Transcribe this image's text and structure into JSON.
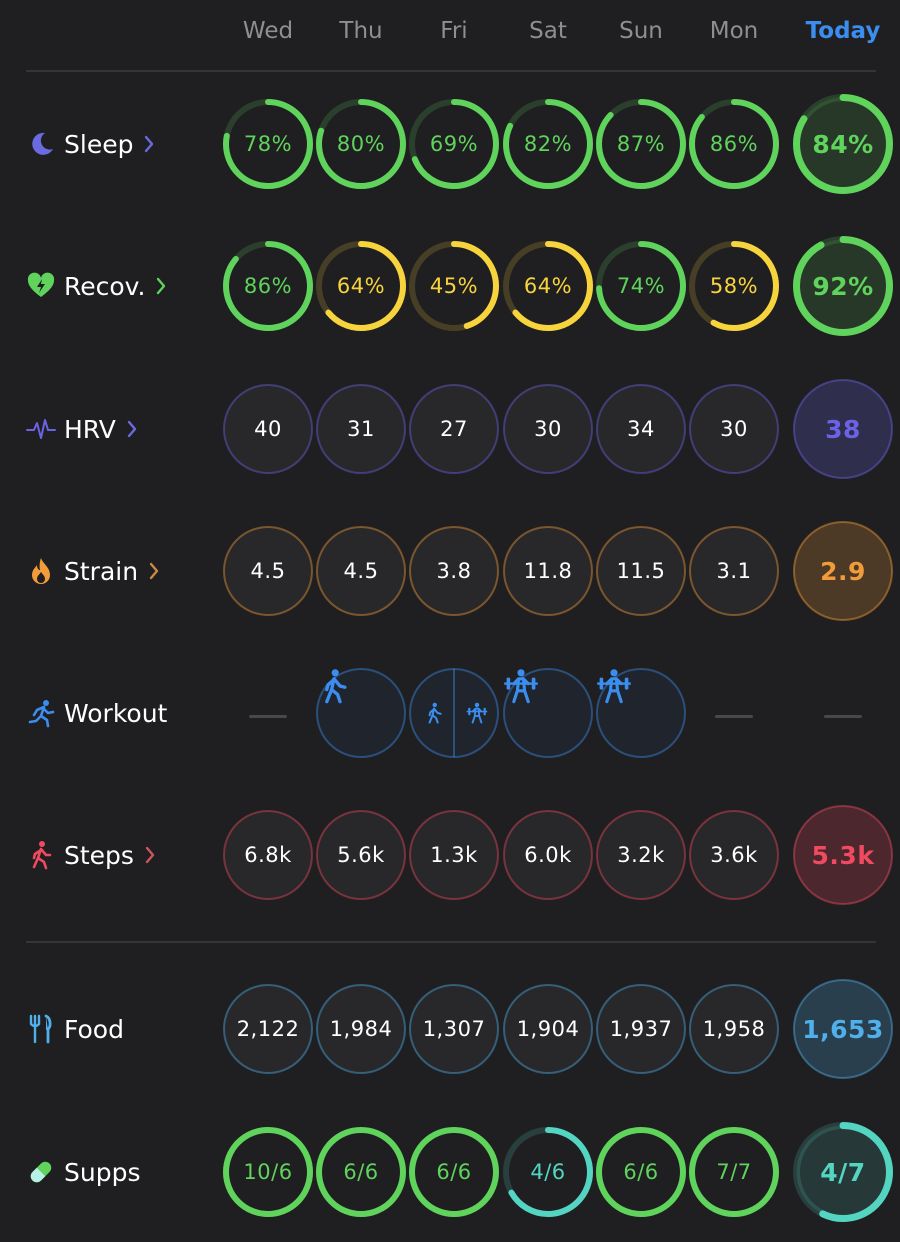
{
  "days": [
    "Wed",
    "Thu",
    "Fri",
    "Sat",
    "Sun",
    "Mon",
    "Today"
  ],
  "colors": {
    "green": "#5fd35c",
    "yellow": "#f7d43e",
    "teal": "#53d5c2",
    "purple": "#6b63e6",
    "orange": "#f29b3a",
    "red": "#ef4a60",
    "blue": "#4fb0ec",
    "workout_blue": "#3b8ef0"
  },
  "rows": [
    {
      "id": "sleep",
      "label": "Sleep",
      "icon": "moon-icon",
      "chevron": true,
      "color": "#5fd35c",
      "chevron_color": "#6a6be0",
      "cells": [
        {
          "text": "78%",
          "ring": 0.78,
          "color": "#5fd35c"
        },
        {
          "text": "80%",
          "ring": 0.8,
          "color": "#5fd35c"
        },
        {
          "text": "69%",
          "ring": 0.69,
          "color": "#5fd35c"
        },
        {
          "text": "82%",
          "ring": 0.82,
          "color": "#5fd35c"
        },
        {
          "text": "87%",
          "ring": 0.87,
          "color": "#5fd35c"
        },
        {
          "text": "86%",
          "ring": 0.86,
          "color": "#5fd35c"
        },
        {
          "text": "84%",
          "ring": 0.84,
          "color": "#5fd35c"
        }
      ]
    },
    {
      "id": "recovery",
      "label": "Recov.",
      "icon": "heart-bolt-icon",
      "chevron": true,
      "color": "#5fd35c",
      "chevron_color": "#5fd35c",
      "cells": [
        {
          "text": "86%",
          "ring": 0.86,
          "color": "#5fd35c"
        },
        {
          "text": "64%",
          "ring": 0.64,
          "color": "#f7d43e"
        },
        {
          "text": "45%",
          "ring": 0.45,
          "color": "#f7d43e"
        },
        {
          "text": "64%",
          "ring": 0.64,
          "color": "#f7d43e"
        },
        {
          "text": "74%",
          "ring": 0.74,
          "color": "#5fd35c"
        },
        {
          "text": "58%",
          "ring": 0.58,
          "color": "#f7d43e"
        },
        {
          "text": "92%",
          "ring": 0.92,
          "color": "#5fd35c"
        }
      ]
    },
    {
      "id": "hrv",
      "label": "HRV",
      "icon": "pulse-icon",
      "chevron": true,
      "color": "#6b63e6",
      "chevron_color": "#6a6be0",
      "cells": [
        {
          "text": "40"
        },
        {
          "text": "31"
        },
        {
          "text": "27"
        },
        {
          "text": "30"
        },
        {
          "text": "34"
        },
        {
          "text": "30"
        },
        {
          "text": "38"
        }
      ]
    },
    {
      "id": "strain",
      "label": "Strain",
      "icon": "flame-icon",
      "chevron": true,
      "color": "#f29b3a",
      "chevron_color": "#c98a44",
      "cells": [
        {
          "text": "4.5"
        },
        {
          "text": "4.5"
        },
        {
          "text": "3.8"
        },
        {
          "text": "11.8"
        },
        {
          "text": "11.5"
        },
        {
          "text": "3.1"
        },
        {
          "text": "2.9"
        }
      ]
    },
    {
      "id": "workout",
      "label": "Workout",
      "icon": "running-icon",
      "chevron": false,
      "color": "#3b8ef0",
      "cells": [
        {
          "type": "dash"
        },
        {
          "type": "workout",
          "icons": [
            "walking-icon"
          ]
        },
        {
          "type": "workout",
          "icons": [
            "walking-icon",
            "weightlifting-icon"
          ]
        },
        {
          "type": "workout",
          "icons": [
            "weightlifting-icon"
          ]
        },
        {
          "type": "workout",
          "icons": [
            "weightlifting-icon"
          ]
        },
        {
          "type": "dash"
        },
        {
          "type": "dash"
        }
      ]
    },
    {
      "id": "steps",
      "label": "Steps",
      "icon": "walking-figure-icon",
      "chevron": true,
      "color": "#ef4a60",
      "chevron_color": "#c9565f",
      "cells": [
        {
          "text": "6.8k"
        },
        {
          "text": "5.6k"
        },
        {
          "text": "1.3k"
        },
        {
          "text": "6.0k"
        },
        {
          "text": "3.2k"
        },
        {
          "text": "3.6k"
        },
        {
          "text": "5.3k"
        }
      ]
    },
    {
      "id": "food",
      "label": "Food",
      "icon": "fork-knife-icon",
      "chevron": false,
      "color": "#4fb0ec",
      "cells": [
        {
          "text": "2,122"
        },
        {
          "text": "1,984"
        },
        {
          "text": "1,307"
        },
        {
          "text": "1,904"
        },
        {
          "text": "1,937"
        },
        {
          "text": "1,958"
        },
        {
          "text": "1,653"
        }
      ]
    },
    {
      "id": "supps",
      "label": "Supps",
      "icon": "pill-icon",
      "chevron": false,
      "color": "#5fd35c",
      "cells": [
        {
          "text": "10/6",
          "ring": 1.0,
          "color": "#5fd35c"
        },
        {
          "text": "6/6",
          "ring": 1.0,
          "color": "#5fd35c"
        },
        {
          "text": "6/6",
          "ring": 1.0,
          "color": "#5fd35c"
        },
        {
          "text": "4/6",
          "ring": 0.667,
          "color": "#53d5c2"
        },
        {
          "text": "6/6",
          "ring": 1.0,
          "color": "#5fd35c"
        },
        {
          "text": "7/7",
          "ring": 1.0,
          "color": "#5fd35c"
        },
        {
          "text": "4/7",
          "ring": 0.571,
          "color": "#53d5c2"
        }
      ]
    }
  ]
}
